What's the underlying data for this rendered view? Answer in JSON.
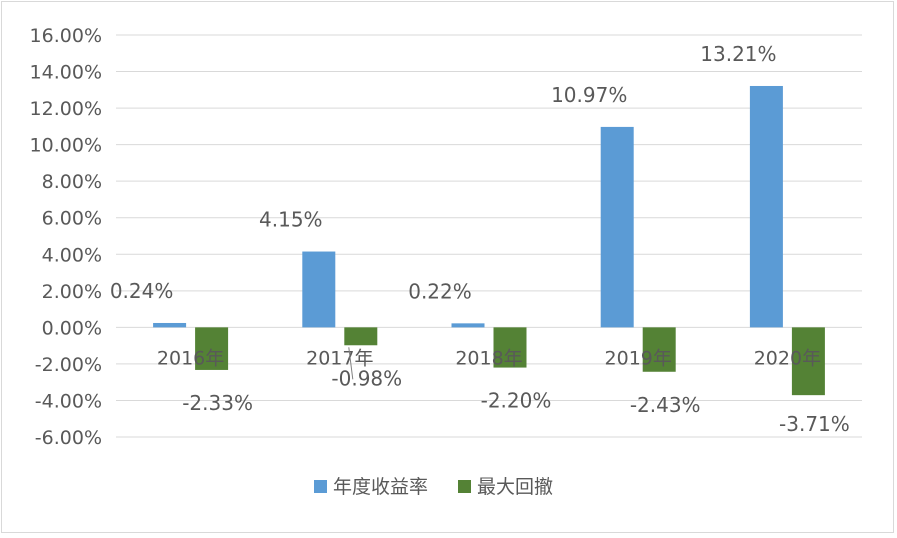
{
  "chart_data": {
    "type": "bar",
    "categories": [
      "2016年",
      "2017年",
      "2018年",
      "2019年",
      "2020年"
    ],
    "series": [
      {
        "name": "年度收益率",
        "values": [
          0.24,
          4.15,
          0.22,
          10.97,
          13.21
        ],
        "labels": [
          "0.24%",
          "4.15%",
          "0.22%",
          "10.97%",
          "13.21%"
        ],
        "color": "#5b9bd5"
      },
      {
        "name": "最大回撤",
        "values": [
          -2.33,
          -0.98,
          -2.2,
          -2.43,
          -3.71
        ],
        "labels": [
          "-2.33%",
          "-0.98%",
          "-2.20%",
          "-2.43%",
          "-3.71%"
        ],
        "color": "#548235"
      }
    ],
    "ylim": [
      -6,
      16
    ],
    "yticks": [
      16,
      14,
      12,
      10,
      8,
      6,
      4,
      2,
      0,
      -2,
      -4,
      -6
    ],
    "ytick_labels": [
      "16.00%",
      "14.00%",
      "12.00%",
      "10.00%",
      "8.00%",
      "6.00%",
      "4.00%",
      "2.00%",
      "0.00%",
      "-2.00%",
      "-4.00%",
      "-6.00%"
    ],
    "grid": true,
    "legend_position": "bottom",
    "gridline_color": "#d9d9d9"
  }
}
